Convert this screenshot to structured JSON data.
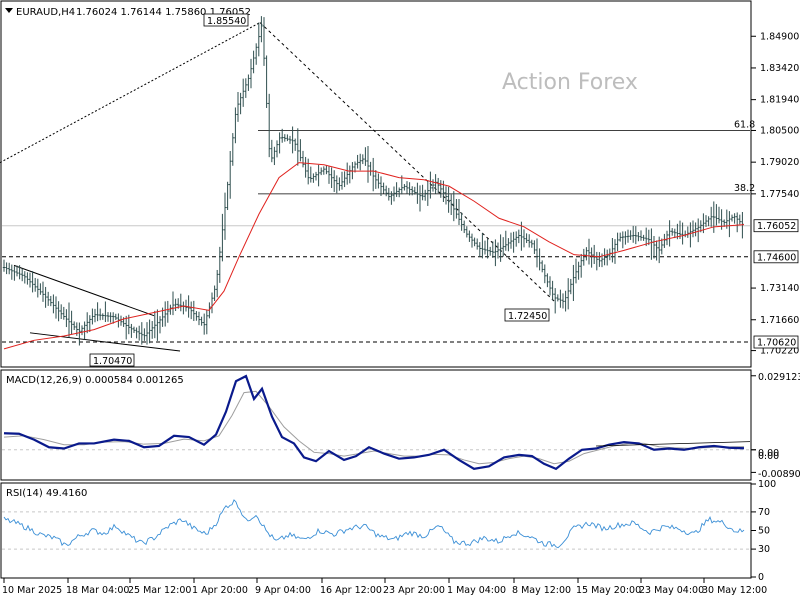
{
  "header": {
    "symbol": "EURAUD,H4",
    "ohlc": "1.76024 1.76144 1.75860 1.76052",
    "watermark": "Action Forex"
  },
  "colors": {
    "bars": "#2f4f4f",
    "ma": "#e0221e",
    "macd": "#0a1a8c",
    "signal": "#9e9e9e",
    "rsi": "#3b8fd6",
    "grid": "#c8c8c8"
  },
  "chart_data": [
    {
      "type": "ohlc",
      "panel": "price",
      "ylim": [
        1.695,
        1.865
      ],
      "y_ticks": [
        "1.84900",
        "1.83420",
        "1.81940",
        "1.80500",
        "1.79020",
        "1.77540",
        "1.73140",
        "1.71660",
        "1.70220"
      ],
      "price_boxes": [
        {
          "label": "1.76052",
          "value": 1.76052
        },
        {
          "label": "1.74600",
          "value": 1.746
        },
        {
          "label": "1.70620",
          "value": 1.7062
        }
      ],
      "annotations": [
        {
          "label": "1.85540",
          "value": 1.8554
        },
        {
          "label": "1.72450",
          "value": 1.7245
        },
        {
          "label": "1.70470",
          "value": 1.7047
        }
      ],
      "fib_levels": [
        {
          "label": "61.8",
          "value": 1.805
        },
        {
          "label": "38.2",
          "value": 1.7754
        }
      ],
      "x_ticks": [
        "10 Mar 2025",
        "18 Mar 04:00",
        "25 Mar 12:00",
        "1 Apr 20:00",
        "9 Apr 04:00",
        "16 Apr 12:00",
        "23 Apr 20:00",
        "1 May 04:00",
        "8 May 12:00",
        "15 May 20:00",
        "23 May 04:00",
        "30 May 12:00"
      ],
      "close_path": [
        [
          0,
          1.741
        ],
        [
          20,
          1.737
        ],
        [
          40,
          1.728
        ],
        [
          60,
          1.718
        ],
        [
          75,
          1.711
        ],
        [
          90,
          1.719
        ],
        [
          110,
          1.718
        ],
        [
          125,
          1.713
        ],
        [
          140,
          1.709
        ],
        [
          155,
          1.716
        ],
        [
          170,
          1.724
        ],
        [
          185,
          1.722
        ],
        [
          200,
          1.714
        ],
        [
          212,
          1.733
        ],
        [
          222,
          1.773
        ],
        [
          232,
          1.815
        ],
        [
          245,
          1.83
        ],
        [
          258,
          1.855
        ],
        [
          266,
          1.79
        ],
        [
          276,
          1.802
        ],
        [
          290,
          1.8
        ],
        [
          305,
          1.782
        ],
        [
          320,
          1.787
        ],
        [
          335,
          1.779
        ],
        [
          350,
          1.789
        ],
        [
          360,
          1.792
        ],
        [
          370,
          1.783
        ],
        [
          385,
          1.774
        ],
        [
          400,
          1.779
        ],
        [
          418,
          1.774
        ],
        [
          432,
          1.781
        ],
        [
          448,
          1.77
        ],
        [
          462,
          1.757
        ],
        [
          475,
          1.75
        ],
        [
          490,
          1.748
        ],
        [
          500,
          1.751
        ],
        [
          515,
          1.756
        ],
        [
          528,
          1.752
        ],
        [
          540,
          1.738
        ],
        [
          550,
          1.727
        ],
        [
          560,
          1.725
        ],
        [
          570,
          1.737
        ],
        [
          582,
          1.749
        ],
        [
          595,
          1.744
        ],
        [
          605,
          1.747
        ],
        [
          615,
          1.755
        ],
        [
          630,
          1.756
        ],
        [
          645,
          1.754
        ],
        [
          655,
          1.749
        ],
        [
          665,
          1.758
        ],
        [
          680,
          1.756
        ],
        [
          695,
          1.76
        ],
        [
          708,
          1.765
        ],
        [
          720,
          1.762
        ],
        [
          730,
          1.765
        ],
        [
          740,
          1.7605
        ]
      ],
      "series": [
        {
          "name": "",
          "type": "moving-average",
          "points": [
            [
              0,
              1.703
            ],
            [
              30,
              1.707
            ],
            [
              60,
              1.709
            ],
            [
              90,
              1.712
            ],
            [
              120,
              1.717
            ],
            [
              150,
              1.72
            ],
            [
              180,
              1.723
            ],
            [
              205,
              1.721
            ],
            [
              220,
              1.73
            ],
            [
              235,
              1.746
            ],
            [
              255,
              1.766
            ],
            [
              275,
              1.783
            ],
            [
              295,
              1.79
            ],
            [
              320,
              1.789
            ],
            [
              345,
              1.786
            ],
            [
              370,
              1.786
            ],
            [
              395,
              1.783
            ],
            [
              420,
              1.782
            ],
            [
              445,
              1.779
            ],
            [
              470,
              1.772
            ],
            [
              495,
              1.764
            ],
            [
              520,
              1.76
            ],
            [
              545,
              1.753
            ],
            [
              570,
              1.747
            ],
            [
              595,
              1.746
            ],
            [
              620,
              1.749
            ],
            [
              650,
              1.753
            ],
            [
              680,
              1.756
            ],
            [
              710,
              1.76
            ],
            [
              740,
              1.761
            ]
          ]
        }
      ]
    },
    {
      "type": "line",
      "panel": "macd",
      "title": "MACD(12,26,9) 0.000584 0.001265",
      "ylim": [
        -0.0115,
        0.031
      ],
      "y_ticks": [
        "0.029123",
        "0.00",
        "0.00",
        "-0.008901"
      ],
      "series": [
        {
          "name": "",
          "values_xy": [
            [
              0,
              0.0065
            ],
            [
              15,
              0.0063
            ],
            [
              30,
              0.004
            ],
            [
              45,
              0.001
            ],
            [
              60,
              0.0005
            ],
            [
              75,
              0.0025
            ],
            [
              90,
              0.0025
            ],
            [
              110,
              0.004
            ],
            [
              125,
              0.0035
            ],
            [
              140,
              0.001
            ],
            [
              155,
              0.0015
            ],
            [
              170,
              0.0055
            ],
            [
              185,
              0.005
            ],
            [
              200,
              0.002
            ],
            [
              212,
              0.006
            ],
            [
              222,
              0.015
            ],
            [
              232,
              0.027
            ],
            [
              242,
              0.029
            ],
            [
              250,
              0.02
            ],
            [
              258,
              0.024
            ],
            [
              268,
              0.013
            ],
            [
              278,
              0.005
            ],
            [
              290,
              0.0025
            ],
            [
              300,
              -0.003
            ],
            [
              312,
              -0.0045
            ],
            [
              325,
              -0.0005
            ],
            [
              340,
              -0.004
            ],
            [
              352,
              -0.0025
            ],
            [
              365,
              0.001
            ],
            [
              380,
              -0.0015
            ],
            [
              395,
              -0.0035
            ],
            [
              410,
              -0.003
            ],
            [
              425,
              -0.002
            ],
            [
              440,
              0.0
            ],
            [
              455,
              -0.004
            ],
            [
              470,
              -0.0075
            ],
            [
              485,
              -0.0065
            ],
            [
              500,
              -0.003
            ],
            [
              515,
              -0.002
            ],
            [
              528,
              -0.0025
            ],
            [
              540,
              -0.0055
            ],
            [
              552,
              -0.0075
            ],
            [
              565,
              -0.0035
            ],
            [
              578,
              0.0
            ],
            [
              592,
              0.0005
            ],
            [
              605,
              0.002
            ],
            [
              620,
              0.003
            ],
            [
              635,
              0.0025
            ],
            [
              650,
              0.0
            ],
            [
              665,
              0.0005
            ],
            [
              680,
              0.0
            ],
            [
              695,
              0.001
            ],
            [
              710,
              0.0015
            ],
            [
              725,
              0.0008
            ],
            [
              740,
              0.0006
            ]
          ]
        },
        {
          "name": "",
          "values_xy": [
            [
              0,
              0.005
            ],
            [
              20,
              0.0055
            ],
            [
              40,
              0.004
            ],
            [
              60,
              0.002
            ],
            [
              80,
              0.002
            ],
            [
              100,
              0.003
            ],
            [
              120,
              0.0032
            ],
            [
              140,
              0.0022
            ],
            [
              160,
              0.0025
            ],
            [
              180,
              0.0042
            ],
            [
              200,
              0.0035
            ],
            [
              215,
              0.0055
            ],
            [
              228,
              0.0135
            ],
            [
              240,
              0.0225
            ],
            [
              252,
              0.023
            ],
            [
              265,
              0.017
            ],
            [
              280,
              0.009
            ],
            [
              295,
              0.0035
            ],
            [
              310,
              -0.001
            ],
            [
              325,
              -0.0015
            ],
            [
              340,
              -0.0025
            ],
            [
              355,
              -0.0015
            ],
            [
              370,
              -0.0005
            ],
            [
              385,
              -0.0015
            ],
            [
              400,
              -0.0025
            ],
            [
              415,
              -0.0025
            ],
            [
              430,
              -0.0018
            ],
            [
              445,
              -0.002
            ],
            [
              460,
              -0.004
            ],
            [
              475,
              -0.0055
            ],
            [
              490,
              -0.005
            ],
            [
              505,
              -0.0035
            ],
            [
              520,
              -0.0025
            ],
            [
              535,
              -0.0035
            ],
            [
              550,
              -0.0055
            ],
            [
              565,
              -0.0045
            ],
            [
              580,
              -0.0015
            ],
            [
              595,
              0.0
            ],
            [
              610,
              0.0015
            ],
            [
              625,
              0.0025
            ],
            [
              640,
              0.0025
            ],
            [
              655,
              0.0012
            ],
            [
              670,
              0.0008
            ],
            [
              685,
              0.0006
            ],
            [
              700,
              0.0008
            ],
            [
              720,
              0.0011
            ],
            [
              740,
              0.00126
            ]
          ]
        }
      ]
    },
    {
      "type": "line",
      "panel": "rsi",
      "title": "RSI(14) 49.4160",
      "ylim": [
        0,
        100
      ],
      "y_ticks": [
        "100",
        "70",
        "50",
        "30",
        "0"
      ],
      "guide_levels": [
        70,
        30
      ],
      "series": [
        {
          "name": "",
          "values_xy": [
            [
              0,
              62
            ],
            [
              12,
              58
            ],
            [
              25,
              52
            ],
            [
              38,
              45
            ],
            [
              50,
              42
            ],
            [
              62,
              34
            ],
            [
              75,
              44
            ],
            [
              88,
              50
            ],
            [
              100,
              47
            ],
            [
              112,
              55
            ],
            [
              125,
              44
            ],
            [
              138,
              36
            ],
            [
              150,
              42
            ],
            [
              165,
              55
            ],
            [
              178,
              62
            ],
            [
              190,
              52
            ],
            [
              202,
              46
            ],
            [
              212,
              58
            ],
            [
              222,
              76
            ],
            [
              232,
              82
            ],
            [
              242,
              60
            ],
            [
              252,
              68
            ],
            [
              262,
              50
            ],
            [
              272,
              38
            ],
            [
              285,
              45
            ],
            [
              300,
              40
            ],
            [
              315,
              50
            ],
            [
              330,
              46
            ],
            [
              345,
              52
            ],
            [
              360,
              55
            ],
            [
              375,
              44
            ],
            [
              390,
              40
            ],
            [
              405,
              48
            ],
            [
              420,
              44
            ],
            [
              435,
              55
            ],
            [
              450,
              38
            ],
            [
              465,
              36
            ],
            [
              480,
              42
            ],
            [
              495,
              38
            ],
            [
              510,
              48
            ],
            [
              525,
              44
            ],
            [
              540,
              36
            ],
            [
              555,
              34
            ],
            [
              570,
              52
            ],
            [
              585,
              58
            ],
            [
              600,
              52
            ],
            [
              615,
              56
            ],
            [
              630,
              58
            ],
            [
              645,
              48
            ],
            [
              660,
              54
            ],
            [
              675,
              52
            ],
            [
              690,
              46
            ],
            [
              705,
              62
            ],
            [
              720,
              58
            ],
            [
              730,
              50
            ],
            [
              740,
              49
            ]
          ]
        }
      ]
    }
  ]
}
